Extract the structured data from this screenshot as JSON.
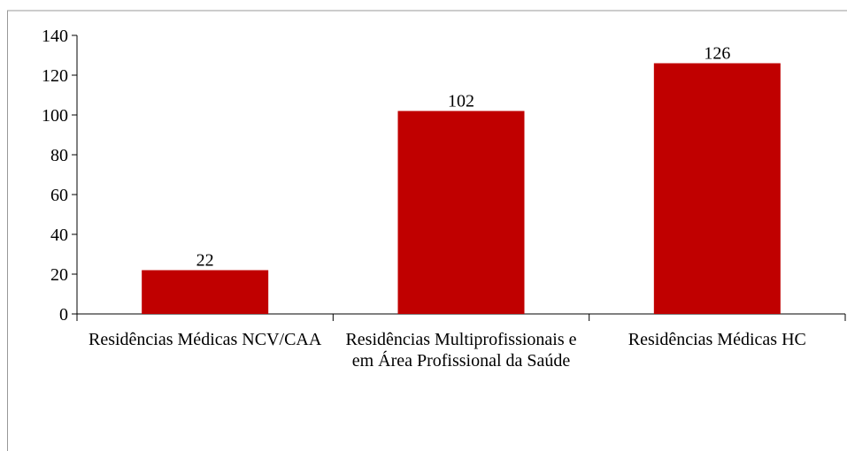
{
  "chart_data": {
    "type": "bar",
    "categories": [
      "Residências Médicas NCV/CAA",
      "Residências Multiprofissionais e em Área Profissional da Saúde",
      "Residências Médicas HC"
    ],
    "values": [
      22,
      102,
      126
    ],
    "color": "#c00000",
    "ylim": [
      0,
      140
    ],
    "yticks": [
      0,
      20,
      40,
      60,
      80,
      100,
      120,
      140
    ],
    "grid": false
  }
}
